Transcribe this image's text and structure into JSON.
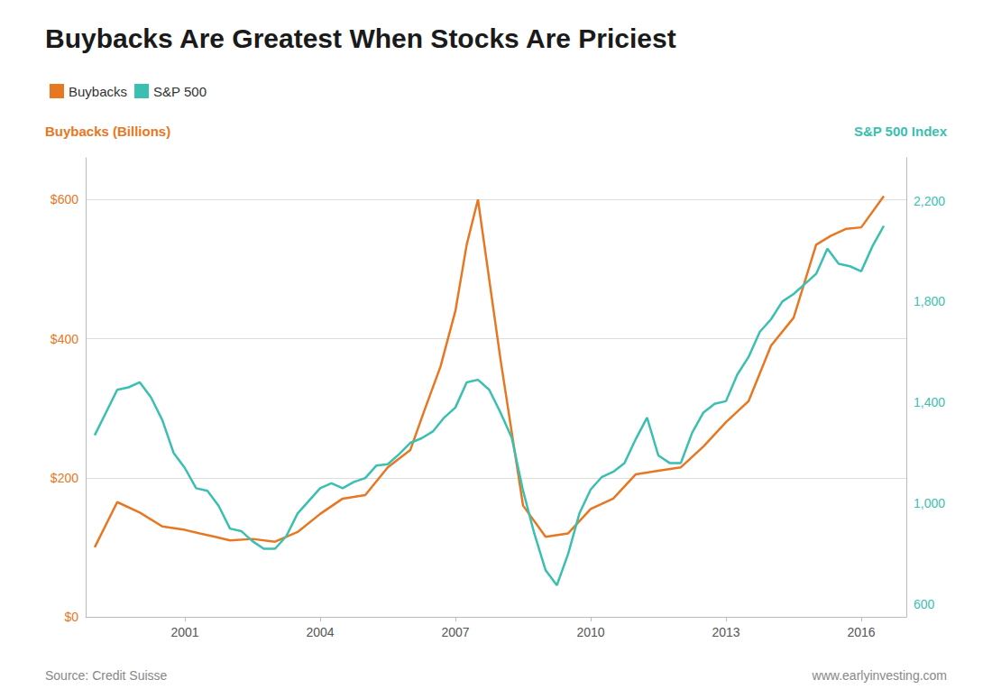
{
  "chart_data": {
    "type": "line",
    "title": "Buybacks Are Greatest When Stocks Are Priciest",
    "ylabel": "Buybacks (Billions)",
    "y2label": "S&P 500 Index",
    "annotations": [
      "Source: Credit Suisse",
      "www.earlyinvesting.com"
    ],
    "series": [
      {
        "name": "Buybacks",
        "color": "#E87722",
        "x": [
          1999,
          1999.5,
          2000,
          2000.5,
          2001,
          2001.33,
          2001.67,
          2002,
          2002.5,
          2003,
          2003.5,
          2004,
          2004.5,
          2005,
          2005.5,
          2006,
          2006.33,
          2006.67,
          2007,
          2007.25,
          2007.5,
          2008,
          2008.5,
          2009,
          2009.5,
          2010,
          2010.5,
          2011,
          2011.5,
          2012,
          2012.5,
          2013,
          2013.5,
          2014,
          2014.5,
          2015,
          2015.33,
          2015.67,
          2016,
          2016.5
        ],
        "values": [
          100,
          165,
          150,
          130,
          125,
          120,
          115,
          110,
          112,
          108,
          122,
          148,
          170,
          175,
          215,
          240,
          300,
          360,
          440,
          535,
          600,
          370,
          160,
          115,
          120,
          155,
          170,
          205,
          210,
          215,
          245,
          280,
          310,
          390,
          430,
          535,
          548,
          558,
          560,
          605
        ]
      },
      {
        "name": "S&P 500",
        "color": "#3ABFB0",
        "axis": "y2",
        "x": [
          1999,
          1999.25,
          1999.5,
          1999.75,
          2000,
          2000.25,
          2000.5,
          2000.75,
          2001,
          2001.25,
          2001.5,
          2001.75,
          2002,
          2002.25,
          2002.5,
          2002.75,
          2003,
          2003.25,
          2003.5,
          2003.75,
          2004,
          2004.25,
          2004.5,
          2004.75,
          2005,
          2005.25,
          2005.5,
          2005.75,
          2006,
          2006.25,
          2006.5,
          2006.75,
          2007,
          2007.25,
          2007.5,
          2007.75,
          2008,
          2008.25,
          2008.5,
          2008.75,
          2009,
          2009.25,
          2009.5,
          2009.75,
          2010,
          2010.25,
          2010.5,
          2010.75,
          2011,
          2011.25,
          2011.5,
          2011.75,
          2012,
          2012.25,
          2012.5,
          2012.75,
          2013,
          2013.25,
          2013.5,
          2013.75,
          2014,
          2014.25,
          2014.5,
          2014.75,
          2015,
          2015.25,
          2015.5,
          2015.75,
          2016,
          2016.25,
          2016.5
        ],
        "values": [
          1270,
          1360,
          1450,
          1460,
          1480,
          1420,
          1330,
          1200,
          1140,
          1060,
          1050,
          990,
          900,
          890,
          850,
          820,
          820,
          870,
          960,
          1010,
          1060,
          1080,
          1060,
          1085,
          1100,
          1150,
          1155,
          1195,
          1240,
          1258,
          1285,
          1340,
          1380,
          1480,
          1490,
          1450,
          1360,
          1260,
          1050,
          880,
          735,
          675,
          800,
          960,
          1055,
          1105,
          1125,
          1160,
          1255,
          1340,
          1190,
          1160,
          1160,
          1280,
          1360,
          1395,
          1405,
          1510,
          1580,
          1680,
          1730,
          1800,
          1830,
          1870,
          1910,
          2010,
          1950,
          1940,
          1920,
          2020,
          2100
        ]
      }
    ],
    "xlim": [
      1998.8,
      2017.0
    ],
    "xticks": [
      2001,
      2004,
      2007,
      2010,
      2013,
      2016
    ],
    "ylim": [
      0,
      660
    ],
    "yticks": [
      {
        "value": 0,
        "label": "$0"
      },
      {
        "value": 200,
        "label": "$200"
      },
      {
        "value": 400,
        "label": "$400"
      },
      {
        "value": 600,
        "label": "$600"
      }
    ],
    "y2lim": [
      550,
      2370
    ],
    "y2ticks": [
      600,
      {
        "value": 1000,
        "label": "1,000"
      },
      {
        "value": 1400,
        "label": "1,400"
      },
      {
        "value": 1800,
        "label": "1,800"
      },
      {
        "value": 2200,
        "label": "2,200"
      }
    ],
    "grid": true,
    "legend": "upper left"
  }
}
